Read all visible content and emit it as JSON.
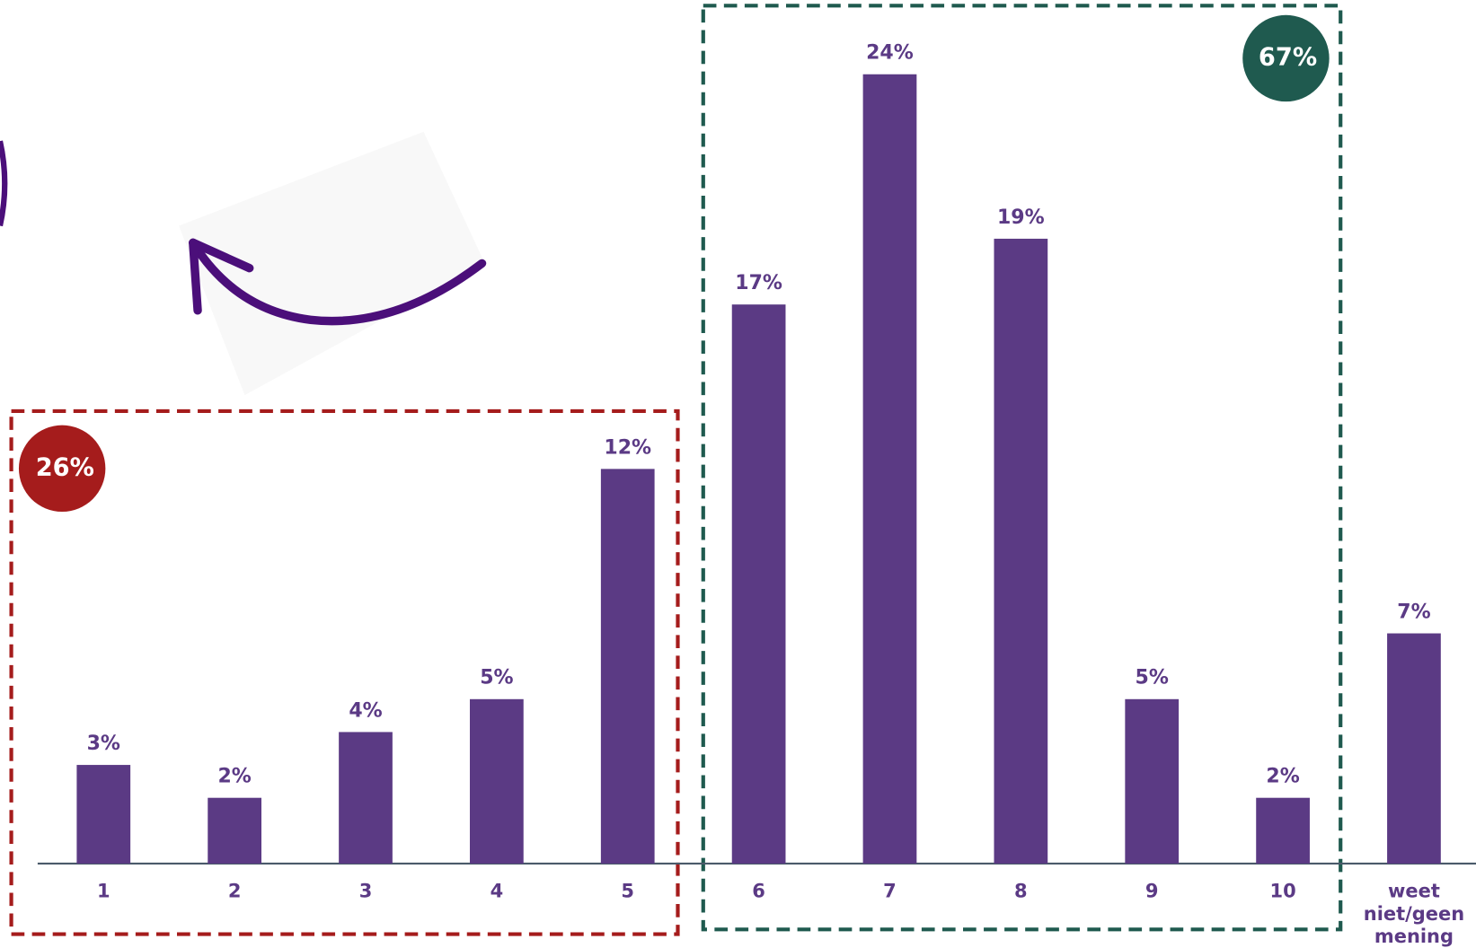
{
  "chart_data": {
    "type": "bar",
    "categories": [
      "1",
      "2",
      "3",
      "4",
      "5",
      "6",
      "7",
      "8",
      "9",
      "10",
      "weet niet/geen mening"
    ],
    "values": [
      3,
      2,
      4,
      5,
      12,
      17,
      24,
      19,
      5,
      2,
      7
    ],
    "value_labels": [
      "3%",
      "2%",
      "4%",
      "5%",
      "12%",
      "17%",
      "24%",
      "19%",
      "5%",
      "2%",
      "7%"
    ],
    "color": "#5b3a84",
    "annotations": [
      "26%",
      "67%"
    ]
  }
}
